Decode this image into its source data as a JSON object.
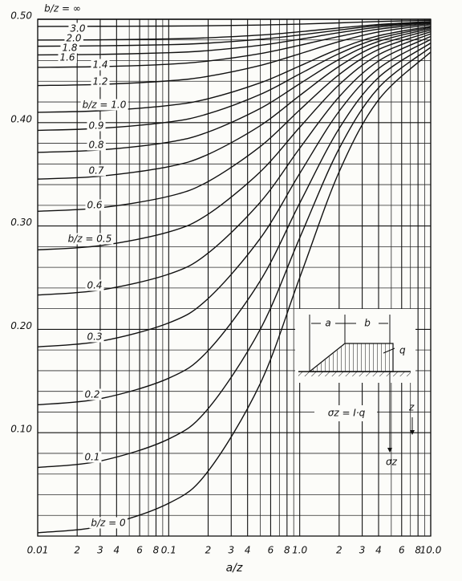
{
  "chart_data": {
    "type": "line",
    "xscale": "log",
    "x_label": "a/z",
    "xlim": [
      0.01,
      10
    ],
    "ylim": [
      0,
      0.5
    ],
    "xticks": [
      0.01,
      {
        "value": 0.02,
        "label": "2"
      },
      {
        "value": 0.03,
        "label": "3"
      },
      {
        "value": 0.04,
        "label": "4"
      },
      {
        "value": 0.06,
        "label": "6"
      },
      {
        "value": 0.08,
        "label": "8"
      },
      0.1,
      {
        "value": 0.2,
        "label": "2"
      },
      {
        "value": 0.3,
        "label": "3"
      },
      {
        "value": 0.4,
        "label": "4"
      },
      {
        "value": 0.6,
        "label": "6"
      },
      {
        "value": 0.8,
        "label": "8"
      },
      {
        "value": 1,
        "label": "1.0"
      },
      2,
      3,
      4,
      6,
      8,
      {
        "value": 10,
        "label": "10.0"
      }
    ],
    "x_minor_ticks": [
      0.05,
      0.07,
      0.09,
      0.5,
      0.7,
      0.9,
      5,
      7,
      9
    ],
    "yticks": [
      {
        "value": 0.1,
        "label": "0.10"
      },
      {
        "value": 0.2,
        "label": "0.20"
      },
      {
        "value": 0.3,
        "label": "0.30"
      },
      {
        "value": 0.4,
        "label": "0.40"
      },
      {
        "value": 0.5,
        "label": "0.50"
      }
    ],
    "y_minor_ticks": [
      0.02,
      0.04,
      0.06,
      0.08,
      0.12,
      0.14,
      0.16,
      0.18,
      0.22,
      0.24,
      0.26,
      0.28,
      0.32,
      0.34,
      0.36,
      0.38,
      0.42,
      0.44,
      0.46,
      0.48
    ],
    "grid": true,
    "line_color": "#111111",
    "x": [
      0.01,
      0.03,
      0.1,
      0.2,
      0.5,
      1,
      2,
      4,
      10
    ],
    "series": [
      {
        "name": "b/z = 0",
        "values": [
          0.0032,
          0.0095,
          0.0317,
          0.0628,
          0.1476,
          0.25,
          0.3524,
          0.422,
          0.4683
        ]
      },
      {
        "name": "0.1",
        "values": [
          0.0664,
          0.0726,
          0.0939,
          0.1233,
          0.2001,
          0.2885,
          0.3749,
          0.4337,
          0.4729
        ]
      },
      {
        "name": "0.2",
        "values": [
          0.127,
          0.1329,
          0.1527,
          0.1794,
          0.247,
          0.3221,
          0.3943,
          0.4437,
          0.477
        ]
      },
      {
        "name": "0.3",
        "values": [
          0.1831,
          0.1884,
          0.2062,
          0.2298,
          0.288,
          0.3508,
          0.411,
          0.4523,
          0.4805
        ]
      },
      {
        "name": "0.4",
        "values": [
          0.2332,
          0.238,
          0.2534,
          0.2738,
          0.323,
          0.3752,
          0.425,
          0.4596,
          0.4834
        ]
      },
      {
        "name": "b/z = 0.5",
        "values": [
          0.2769,
          0.281,
          0.2942,
          0.3114,
          0.3524,
          0.3955,
          0.4367,
          0.4657,
          0.4859
        ]
      },
      {
        "name": "0.6",
        "values": [
          0.3142,
          0.3176,
          0.3287,
          0.343,
          0.3769,
          0.4123,
          0.4465,
          0.4708,
          0.4879
        ]
      },
      {
        "name": "0.7",
        "values": [
          0.3454,
          0.3482,
          0.3574,
          0.3693,
          0.3971,
          0.4262,
          0.4545,
          0.4751,
          0.4897
        ]
      },
      {
        "name": "0.8",
        "values": [
          0.3712,
          0.3736,
          0.3811,
          0.3909,
          0.4137,
          0.4376,
          0.4612,
          0.4786,
          0.4911
        ]
      },
      {
        "name": "0.9",
        "values": [
          0.3925,
          0.3945,
          0.4006,
          0.4086,
          0.4273,
          0.4471,
          0.4668,
          0.4815,
          0.4923
        ]
      },
      {
        "name": "b/z = 1.0",
        "values": [
          0.41,
          0.4115,
          0.4166,
          0.4231,
          0.4385,
          0.4548,
          0.4714,
          0.484,
          0.4933
        ]
      },
      {
        "name": "1.2",
        "values": [
          0.4359,
          0.437,
          0.4404,
          0.4448,
          0.4553,
          0.4666,
          0.4784,
          0.4877,
          0.4948
        ]
      },
      {
        "name": "1.4",
        "values": [
          0.4535,
          0.4542,
          0.4565,
          0.4596,
          0.4668,
          0.4748,
          0.4834,
          0.4904,
          0.4959
        ]
      },
      {
        "name": "1.6",
        "values": [
          0.4655,
          0.466,
          0.4676,
          0.4697,
          0.4748,
          0.4806,
          0.487,
          0.4924,
          0.4967
        ]
      },
      {
        "name": "1.8",
        "values": [
          0.4739,
          0.4743,
          0.4754,
          0.4769,
          0.4806,
          0.4848,
          0.4896,
          0.4938,
          0.4973
        ]
      },
      {
        "name": "2.0",
        "values": [
          0.4799,
          0.4801,
          0.481,
          0.4821,
          0.4847,
          0.4879,
          0.4916,
          0.4949,
          0.4978
        ]
      },
      {
        "name": "3.0",
        "values": [
          0.4931,
          0.4932,
          0.4934,
          0.4937,
          0.4944,
          0.4953,
          0.4965,
          0.4978,
          0.499
        ]
      },
      {
        "name": "b/z = ∞",
        "values": [
          0.5,
          0.5,
          0.5,
          0.5,
          0.5,
          0.5,
          0.5,
          0.5,
          0.5
        ]
      }
    ],
    "annotations": [
      "a",
      "b",
      "q",
      "σz = I·q",
      "z",
      "σz"
    ]
  }
}
